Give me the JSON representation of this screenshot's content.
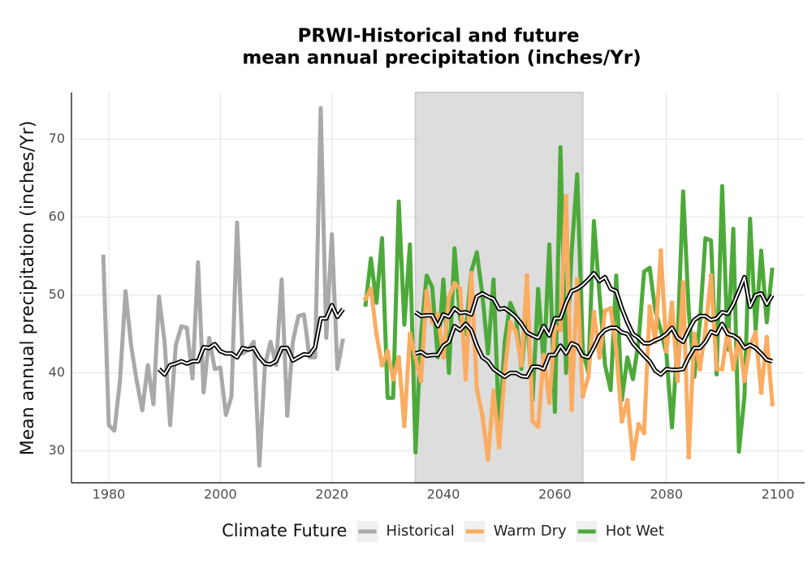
{
  "chart_data": {
    "type": "line",
    "title": [
      "PRWI-Historical and future",
      "mean annual precipitation (inches/Yr)"
    ],
    "y_label": "Mean annual precipitation (inches/Yr)",
    "xlim": [
      1973.3,
      2104.8
    ],
    "xticks": [
      1980,
      2000,
      2020,
      2040,
      2060,
      2080,
      2100
    ],
    "ylim": [
      25.9,
      76.0
    ],
    "yticks": [
      30,
      40,
      50,
      60,
      70
    ],
    "grid": true,
    "shaded_x": [
      2035,
      2065
    ],
    "legend": {
      "title": "Climate Future",
      "position": "bottom"
    },
    "series": [
      {
        "name": "Historical",
        "color": "#a9a9a9",
        "x": [
          1979,
          1980,
          1981,
          1982,
          1983,
          1984,
          1985,
          1986,
          1987,
          1988,
          1989,
          1990,
          1991,
          1992,
          1993,
          1994,
          1995,
          1996,
          1997,
          1998,
          1999,
          2000,
          2001,
          2002,
          2003,
          2004,
          2005,
          2006,
          2007,
          2008,
          2009,
          2010,
          2011,
          2012,
          2013,
          2014,
          2015,
          2016,
          2017,
          2018,
          2019,
          2020,
          2021,
          2022
        ],
        "values": [
          55.2,
          33.3,
          32.6,
          39,
          50.5,
          43.5,
          39,
          35.2,
          41,
          36,
          49.8,
          44,
          33.3,
          43.5,
          46,
          45.8,
          39.3,
          54.2,
          37.5,
          44.5,
          40.5,
          40.7,
          34.6,
          37,
          59.3,
          42.5,
          43,
          44,
          28.1,
          41,
          44,
          41,
          52,
          34.5,
          44,
          47.3,
          47.5,
          42,
          42,
          74,
          44.5,
          57.8,
          40.5,
          44.4
        ],
        "smooth": {
          "x": [
            1989,
            1990,
            1991,
            1992,
            1993,
            1994,
            1995,
            1996,
            1997,
            1998,
            1999,
            2000,
            2001,
            2002,
            2003,
            2004,
            2005,
            2006,
            2007,
            2008,
            2009,
            2010,
            2011,
            2012,
            2013,
            2014,
            2015,
            2016,
            2017,
            2018,
            2019,
            2020,
            2021,
            2022
          ],
          "values": [
            40.5,
            39.8,
            41,
            41.2,
            41.5,
            41.2,
            41.5,
            41.5,
            43.3,
            43.2,
            43.7,
            42.8,
            42.5,
            42.5,
            42,
            43.2,
            43,
            43.2,
            42,
            41.2,
            41.1,
            41.5,
            43.2,
            43.2,
            41.6,
            42,
            42.4,
            42.3,
            43.3,
            47,
            47,
            48.7,
            47.2,
            48.2
          ]
        }
      },
      {
        "name": "Warm Dry",
        "color": "#fbac60",
        "markers": true,
        "x": [
          2026,
          2027,
          2028,
          2029,
          2030,
          2031,
          2032,
          2033,
          2034,
          2035,
          2036,
          2037,
          2038,
          2039,
          2040,
          2041,
          2042,
          2043,
          2044,
          2045,
          2046,
          2047,
          2048,
          2049,
          2050,
          2051,
          2052,
          2053,
          2054,
          2055,
          2056,
          2057,
          2058,
          2059,
          2060,
          2061,
          2062,
          2063,
          2064,
          2065,
          2066,
          2067,
          2068,
          2069,
          2070,
          2071,
          2072,
          2073,
          2074,
          2075,
          2076,
          2077,
          2078,
          2079,
          2080,
          2081,
          2082,
          2083,
          2084,
          2085,
          2086,
          2087,
          2088,
          2089,
          2090,
          2091,
          2092,
          2093,
          2094,
          2095,
          2096,
          2097,
          2098,
          2099
        ],
        "values": [
          49.5,
          50.8,
          45,
          41,
          42.8,
          39.2,
          42,
          33.2,
          45,
          42,
          39,
          50.5,
          46.5,
          47.5,
          42,
          49.7,
          51.5,
          50.8,
          39.2,
          52.8,
          38,
          34.5,
          28.9,
          37.7,
          30.5,
          40,
          46.5,
          45.3,
          41,
          52.5,
          33.8,
          33.1,
          42.3,
          36.2,
          46,
          45.5,
          62.7,
          35.3,
          52,
          37,
          39.5,
          47.8,
          42,
          48,
          48.3,
          43,
          33.8,
          36.5,
          29,
          33.4,
          32.3,
          48.5,
          44,
          55.7,
          42.8,
          49,
          39,
          51.6,
          29.2,
          45,
          40.5,
          45.5,
          52.5,
          40.5,
          40.5,
          45.5,
          40.5,
          44.5,
          39,
          43.5,
          45.2,
          37.5,
          44.6,
          36
        ],
        "smooth": {
          "x": [
            2035,
            2036,
            2037,
            2038,
            2039,
            2040,
            2041,
            2042,
            2043,
            2044,
            2045,
            2046,
            2047,
            2048,
            2049,
            2050,
            2051,
            2052,
            2053,
            2054,
            2055,
            2056,
            2057,
            2058,
            2059,
            2060,
            2061,
            2062,
            2063,
            2064,
            2065,
            2066,
            2067,
            2068,
            2069,
            2070,
            2071,
            2072,
            2073,
            2074,
            2075,
            2076,
            2077,
            2078,
            2079,
            2080,
            2081,
            2082,
            2083,
            2084,
            2085,
            2086,
            2087,
            2088,
            2089,
            2090,
            2091,
            2092,
            2093,
            2094,
            2095,
            2096,
            2097,
            2098,
            2099
          ],
          "values": [
            42.5,
            42.7,
            42.2,
            42.3,
            42.3,
            43.5,
            44,
            46,
            45.5,
            46.3,
            45.5,
            43.5,
            42,
            41.5,
            40.5,
            40,
            39.5,
            40,
            40,
            39.6,
            39.5,
            40.8,
            40.8,
            40.5,
            42.3,
            42.3,
            43.5,
            42.5,
            43.8,
            43.5,
            42.2,
            42,
            43.3,
            44.8,
            45.5,
            45.8,
            45.8,
            45.2,
            45,
            43.8,
            43,
            42.2,
            41.5,
            40.3,
            39.8,
            40.5,
            40.4,
            40.4,
            40.5,
            42,
            43.2,
            43.2,
            44,
            45.3,
            45,
            46.3,
            45,
            44.8,
            44.3,
            43.2,
            43.6,
            43.2,
            42.5,
            41.7,
            41.5
          ]
        }
      },
      {
        "name": "Hot Wet",
        "color": "#4daa3a",
        "x": [
          2026,
          2027,
          2028,
          2029,
          2030,
          2031,
          2032,
          2033,
          2034,
          2035,
          2036,
          2037,
          2038,
          2039,
          2040,
          2041,
          2042,
          2043,
          2044,
          2045,
          2046,
          2047,
          2048,
          2049,
          2050,
          2051,
          2052,
          2053,
          2054,
          2055,
          2056,
          2057,
          2058,
          2059,
          2060,
          2061,
          2062,
          2063,
          2064,
          2065,
          2066,
          2067,
          2068,
          2069,
          2070,
          2071,
          2072,
          2073,
          2074,
          2075,
          2076,
          2077,
          2078,
          2079,
          2080,
          2081,
          2082,
          2083,
          2084,
          2085,
          2086,
          2087,
          2088,
          2089,
          2090,
          2091,
          2092,
          2093,
          2094,
          2095,
          2096,
          2097,
          2098,
          2099
        ],
        "values": [
          48.5,
          54.7,
          49,
          57.3,
          36.8,
          36.8,
          62,
          46.2,
          56.5,
          29.8,
          45,
          52.5,
          51,
          42,
          52,
          40,
          56,
          47,
          45,
          53,
          55.5,
          50,
          42.5,
          52,
          32.7,
          44,
          49,
          47.3,
          40.5,
          48,
          36.5,
          50.8,
          41,
          56.5,
          35,
          69,
          40,
          55.5,
          65.5,
          43,
          40,
          59.5,
          50,
          41,
          37.8,
          52.5,
          36.5,
          42,
          39.2,
          44,
          53,
          53.5,
          48,
          45.5,
          42.5,
          33,
          44,
          63.3,
          48,
          39.5,
          46.5,
          57.3,
          57,
          39.8,
          64,
          43,
          58.5,
          29.9,
          37,
          59.8,
          45.5,
          55.7,
          46.5,
          53.5
        ],
        "smooth": {
          "x": [
            2035,
            2036,
            2037,
            2038,
            2039,
            2040,
            2041,
            2042,
            2043,
            2044,
            2045,
            2046,
            2047,
            2048,
            2049,
            2050,
            2051,
            2052,
            2053,
            2054,
            2055,
            2056,
            2057,
            2058,
            2059,
            2060,
            2061,
            2062,
            2063,
            2064,
            2065,
            2066,
            2067,
            2068,
            2069,
            2070,
            2071,
            2072,
            2073,
            2074,
            2075,
            2076,
            2077,
            2078,
            2079,
            2080,
            2081,
            2082,
            2083,
            2084,
            2085,
            2086,
            2087,
            2088,
            2089,
            2090,
            2091,
            2092,
            2093,
            2094,
            2095,
            2096,
            2097,
            2098,
            2099
          ],
          "values": [
            47.8,
            47.3,
            47.4,
            47.4,
            46,
            47.5,
            47.2,
            48.3,
            47.7,
            47.8,
            47.5,
            49.8,
            50.2,
            49.8,
            49.5,
            48.2,
            48.3,
            47.8,
            47.2,
            46.3,
            45.2,
            44.8,
            44.5,
            46,
            44.8,
            47,
            47,
            49,
            50.5,
            50.8,
            51.3,
            52,
            52.8,
            51.8,
            52.3,
            50.8,
            50.5,
            48.3,
            46.5,
            45,
            44.5,
            43.8,
            43.8,
            44.2,
            44.5,
            45,
            45.8,
            44.5,
            44,
            45.5,
            46.8,
            47.3,
            47.3,
            46.8,
            47,
            47.8,
            47.6,
            48.8,
            50.5,
            52.3,
            48.5,
            50,
            50.2,
            48.8,
            50
          ]
        }
      }
    ]
  }
}
